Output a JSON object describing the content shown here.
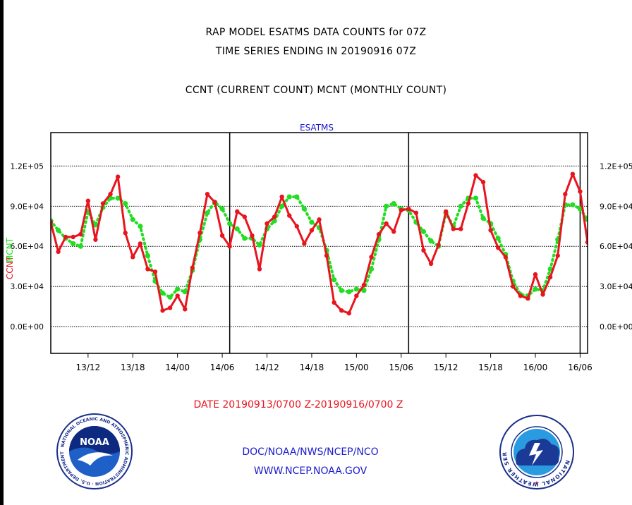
{
  "header": {
    "title1": "RAP MODEL ESATMS DATA COUNTS for 07Z",
    "title2": "TIME SERIES ENDING IN 20190916 07Z",
    "title3": "CCNT (CURRENT COUNT) MCNT (MONTHLY COUNT)"
  },
  "footer": {
    "date_range": "DATE 20190913/0700 Z-20190916/0700 Z",
    "org": "DOC/NOAA/NWS/NCEP/NCO",
    "url": "WWW.NCEP.NOAA.GOV"
  },
  "logos": {
    "noaa": "NOAA",
    "noaa_ring": "NATIONAL OCEANIC AND ATMOSPHERIC ADMINISTRATION · U.S. DEPARTMENT OF COMMERCE",
    "nws_ring": "NATIONAL WEATHER SERVICE"
  },
  "colors": {
    "ccnt": "#e8141e",
    "mcnt": "#22dd22",
    "text_blue": "#1a1acc",
    "axis": "#000000"
  },
  "chart_data": {
    "type": "line",
    "title": "ESATMS",
    "ylabel_left": "CCNT",
    "ylabel_right": "MCNT",
    "x_tick_labels": [
      "13/12",
      "13/18",
      "14/00",
      "14/06",
      "14/12",
      "14/18",
      "15/00",
      "15/06",
      "15/12",
      "15/18",
      "16/00",
      "16/06"
    ],
    "x_tick_hours": [
      12,
      18,
      24,
      30,
      36,
      42,
      48,
      54,
      60,
      66,
      72,
      78
    ],
    "x_range_hours": [
      7,
      79
    ],
    "x_note": "hours after 2019-09-13 00Z",
    "day_boundaries_hours": [
      31,
      55,
      78
    ],
    "ylim": [
      -20000,
      145000
    ],
    "y_ticks": [
      0,
      30000,
      60000,
      90000,
      120000
    ],
    "y_tick_labels_left": [
      "0.0E+00",
      "3.0E+04",
      "6.0E+04",
      "9.0E+04",
      "1.2E+05"
    ],
    "y_tick_labels_right": [
      "0.0E+00",
      "3.0E+04",
      "6.0E+04",
      "9.0E+04",
      "1.2E+05"
    ],
    "grid": "horizontal dotted",
    "series": [
      {
        "name": "CCNT",
        "style": "solid",
        "x": [
          7,
          8,
          9,
          10,
          11,
          12,
          13,
          14,
          15,
          16,
          17,
          18,
          19,
          20,
          21,
          22,
          23,
          24,
          25,
          26,
          27,
          28,
          29,
          30,
          31,
          32,
          33,
          34,
          35,
          36,
          37,
          38,
          39,
          40,
          41,
          42,
          43,
          44,
          45,
          46,
          47,
          48,
          49,
          50,
          51,
          52,
          53,
          54,
          55,
          56,
          57,
          58,
          59,
          60,
          61,
          62,
          63,
          64,
          65,
          66,
          67,
          68,
          69,
          70,
          71,
          72,
          73,
          74,
          75,
          76,
          77,
          78,
          79
        ],
        "values": [
          78000,
          56000,
          67000,
          67000,
          69000,
          94000,
          65000,
          92000,
          99000,
          112000,
          70000,
          52000,
          62000,
          43000,
          41000,
          12000,
          14000,
          23000,
          13000,
          44000,
          70000,
          99000,
          93000,
          68000,
          60000,
          86000,
          82000,
          68000,
          43000,
          77000,
          82000,
          97000,
          83000,
          75000,
          62000,
          72000,
          80000,
          53000,
          18000,
          12000,
          10000,
          23000,
          31000,
          52000,
          69000,
          77000,
          71000,
          87000,
          88000,
          85000,
          57000,
          47000,
          61000,
          86000,
          73000,
          73000,
          92000,
          113000,
          108000,
          72000,
          59000,
          52000,
          30000,
          23000,
          21000,
          39000,
          24000,
          37000,
          53000,
          99000,
          114000,
          101000,
          63000
        ]
      },
      {
        "name": "MCNT",
        "style": "dotted",
        "x": [
          7,
          8,
          9,
          10,
          11,
          12,
          13,
          14,
          15,
          16,
          17,
          18,
          19,
          20,
          21,
          22,
          23,
          24,
          25,
          26,
          27,
          28,
          29,
          30,
          31,
          32,
          33,
          34,
          35,
          36,
          37,
          38,
          39,
          40,
          41,
          42,
          43,
          44,
          45,
          46,
          47,
          48,
          49,
          50,
          51,
          52,
          53,
          54,
          55,
          56,
          57,
          58,
          59,
          60,
          61,
          62,
          63,
          64,
          65,
          66,
          67,
          68,
          69,
          70,
          71,
          72,
          73,
          74,
          75,
          76,
          77,
          78,
          79
        ],
        "values": [
          79000,
          72000,
          66000,
          62000,
          60000,
          86000,
          76000,
          89000,
          96000,
          96000,
          92000,
          80000,
          75000,
          53000,
          34000,
          25000,
          22000,
          28000,
          26000,
          42000,
          65000,
          85000,
          93000,
          88000,
          77000,
          73000,
          66000,
          66000,
          61000,
          73000,
          79000,
          90000,
          97000,
          97000,
          88000,
          78000,
          74000,
          57000,
          35000,
          27000,
          26000,
          28000,
          27000,
          43000,
          65000,
          90000,
          92000,
          88000,
          87000,
          78000,
          71000,
          64000,
          60000,
          85000,
          75000,
          90000,
          96000,
          96000,
          81000,
          77000,
          66000,
          54000,
          34000,
          24000,
          23000,
          28000,
          27000,
          43000,
          65000,
          91000,
          91000,
          88000,
          80000
        ]
      }
    ]
  }
}
